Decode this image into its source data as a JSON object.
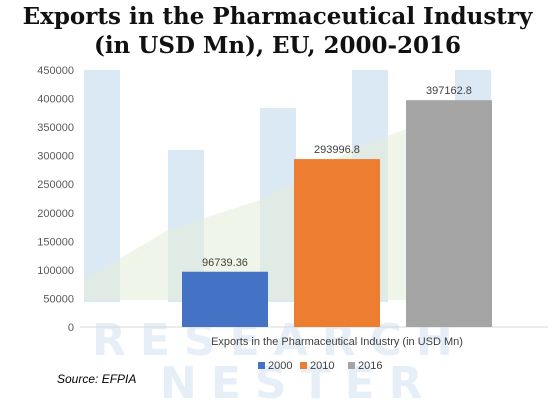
{
  "title_line1": "Exports in the Pharmaceutical Industry",
  "title_line2": "(in USD Mn), EU, 2000-2016",
  "source": "Source: EFPIA",
  "watermark": [
    "RESEARCH",
    "NESTER"
  ],
  "colors": {
    "2000": "#4472c4",
    "2010": "#ed7d31",
    "2016": "#a5a5a5",
    "watermark_bar": "#dbe9f5",
    "watermark_green": "#e2ecd6",
    "watermark_text": "#e6eef7"
  },
  "chart_data": {
    "type": "bar",
    "title": "Exports in the Pharmaceutical Industry (in USD Mn), EU, 2000-2016",
    "xlabel": "Exports in the Pharmaceutical Industry (in USD Mn)",
    "ylabel": "",
    "ylim": [
      0,
      450000
    ],
    "yticks": [
      "450000",
      "400000",
      "350000",
      "300000",
      "250000",
      "200000",
      "150000",
      "100000",
      "50000",
      "0"
    ],
    "grid": false,
    "legend": "bottom",
    "categories": [
      "Exports in the Pharmaceutical Industry (in USD Mn)"
    ],
    "series": [
      {
        "name": "2000",
        "values": [
          96739.36
        ],
        "label": "96739.36"
      },
      {
        "name": "2010",
        "values": [
          293996.8
        ],
        "label": "293996.8"
      },
      {
        "name": "2016",
        "values": [
          397162.8
        ],
        "label": "397162.8"
      }
    ]
  }
}
